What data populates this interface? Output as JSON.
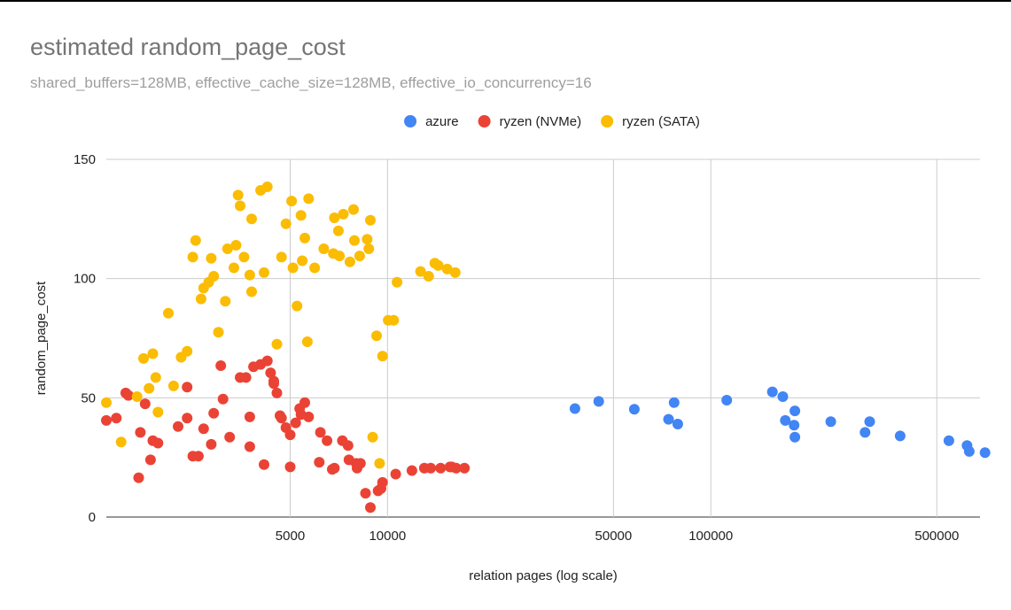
{
  "chart_data": {
    "type": "scatter",
    "title": "estimated random_page_cost",
    "subtitle": "shared_buffers=128MB, effective_cache_size=128MB, effective_io_concurrency=16",
    "xlabel": "relation pages (log scale)",
    "ylabel": "random_page_cost",
    "x_scale": "log",
    "xlim": [
      1350,
      680000
    ],
    "ylim": [
      0,
      150
    ],
    "x_ticks": [
      5000,
      10000,
      50000,
      100000,
      500000
    ],
    "y_ticks": [
      0,
      50,
      100,
      150
    ],
    "grid": true,
    "legend_position": "top",
    "series": [
      {
        "name": "azure",
        "color": "#4285F4",
        "points": [
          [
            38000,
            45.5
          ],
          [
            45000,
            48.5
          ],
          [
            58000,
            45.2
          ],
          [
            74000,
            41
          ],
          [
            77000,
            48
          ],
          [
            79000,
            39
          ],
          [
            112000,
            49
          ],
          [
            155000,
            52.5
          ],
          [
            167000,
            50.5
          ],
          [
            170000,
            40.5
          ],
          [
            181000,
            38.5
          ],
          [
            182000,
            44.5
          ],
          [
            182000,
            33.5
          ],
          [
            235000,
            40
          ],
          [
            300000,
            35.5
          ],
          [
            310000,
            40
          ],
          [
            385000,
            34
          ],
          [
            545000,
            32
          ],
          [
            620000,
            30
          ],
          [
            630000,
            27.5
          ],
          [
            705000,
            27
          ]
        ]
      },
      {
        "name": "ryzen (NVMe)",
        "color": "#EA4335",
        "points": [
          [
            1350,
            40.5
          ],
          [
            1450,
            41.5
          ],
          [
            1550,
            52
          ],
          [
            1580,
            51
          ],
          [
            1700,
            16.5
          ],
          [
            1720,
            35.5
          ],
          [
            1780,
            47.5
          ],
          [
            1850,
            24
          ],
          [
            1880,
            32
          ],
          [
            1950,
            31
          ],
          [
            2250,
            38
          ],
          [
            2400,
            54.5
          ],
          [
            2400,
            41.5
          ],
          [
            2500,
            25.5
          ],
          [
            2600,
            25.5
          ],
          [
            2700,
            37
          ],
          [
            2850,
            30.5
          ],
          [
            2900,
            43.5
          ],
          [
            3050,
            63.5
          ],
          [
            3100,
            49.5
          ],
          [
            3250,
            33.5
          ],
          [
            3500,
            58.5
          ],
          [
            3650,
            58.5
          ],
          [
            3750,
            29.5
          ],
          [
            3750,
            42
          ],
          [
            3850,
            63
          ],
          [
            4050,
            64
          ],
          [
            4150,
            22
          ],
          [
            4250,
            65.5
          ],
          [
            4350,
            60.5
          ],
          [
            4450,
            56
          ],
          [
            4450,
            57
          ],
          [
            4550,
            52
          ],
          [
            4650,
            42.5
          ],
          [
            4700,
            41.5
          ],
          [
            4850,
            37.5
          ],
          [
            5000,
            21
          ],
          [
            5000,
            34.5
          ],
          [
            5200,
            39.5
          ],
          [
            5350,
            45.5
          ],
          [
            5400,
            43
          ],
          [
            5550,
            48
          ],
          [
            5700,
            42
          ],
          [
            6150,
            23
          ],
          [
            6200,
            35.5
          ],
          [
            6500,
            32
          ],
          [
            6750,
            20
          ],
          [
            6850,
            20.5
          ],
          [
            7250,
            32
          ],
          [
            7550,
            30
          ],
          [
            7600,
            24
          ],
          [
            8000,
            22.5
          ],
          [
            8050,
            20.5
          ],
          [
            8250,
            22.5
          ],
          [
            8550,
            10
          ],
          [
            8850,
            4
          ],
          [
            9350,
            11
          ],
          [
            9550,
            12
          ],
          [
            9650,
            14.5
          ],
          [
            10600,
            18
          ],
          [
            11900,
            19.5
          ],
          [
            13000,
            20.5
          ],
          [
            13600,
            20.5
          ],
          [
            14600,
            20.5
          ],
          [
            15600,
            21
          ],
          [
            15800,
            21
          ],
          [
            16300,
            20.5
          ],
          [
            17300,
            20.5
          ]
        ]
      },
      {
        "name": "ryzen (SATA)",
        "color": "#FBBC04",
        "points": [
          [
            1350,
            48
          ],
          [
            1500,
            31.5
          ],
          [
            1680,
            50.5
          ],
          [
            1760,
            66.5
          ],
          [
            1830,
            54
          ],
          [
            1880,
            68.5
          ],
          [
            1920,
            58.5
          ],
          [
            1950,
            44
          ],
          [
            2100,
            85.5
          ],
          [
            2180,
            55
          ],
          [
            2300,
            67
          ],
          [
            2400,
            69.5
          ],
          [
            2500,
            109
          ],
          [
            2550,
            116
          ],
          [
            2650,
            91.5
          ],
          [
            2700,
            96
          ],
          [
            2800,
            98.5
          ],
          [
            2850,
            108.5
          ],
          [
            2900,
            101
          ],
          [
            3000,
            77.5
          ],
          [
            3150,
            90.5
          ],
          [
            3200,
            112.5
          ],
          [
            3350,
            104.5
          ],
          [
            3400,
            114
          ],
          [
            3450,
            135
          ],
          [
            3500,
            130.5
          ],
          [
            3600,
            109
          ],
          [
            3750,
            101.5
          ],
          [
            3800,
            94.5
          ],
          [
            3800,
            125
          ],
          [
            4050,
            137
          ],
          [
            4150,
            102.5
          ],
          [
            4250,
            138.5
          ],
          [
            4550,
            72.5
          ],
          [
            4700,
            109
          ],
          [
            4850,
            123
          ],
          [
            5050,
            132.5
          ],
          [
            5100,
            104.5
          ],
          [
            5250,
            88.5
          ],
          [
            5400,
            126.5
          ],
          [
            5450,
            107.5
          ],
          [
            5550,
            117
          ],
          [
            5650,
            73.5
          ],
          [
            5700,
            133.5
          ],
          [
            5950,
            104.5
          ],
          [
            6350,
            112.5
          ],
          [
            6800,
            110.5
          ],
          [
            6850,
            125.5
          ],
          [
            7050,
            120
          ],
          [
            7100,
            109.5
          ],
          [
            7300,
            127
          ],
          [
            7650,
            107
          ],
          [
            7850,
            129
          ],
          [
            7900,
            116
          ],
          [
            8200,
            109.5
          ],
          [
            8650,
            116.5
          ],
          [
            8750,
            112.5
          ],
          [
            8850,
            124.5
          ],
          [
            9000,
            33.5
          ],
          [
            9250,
            76
          ],
          [
            9450,
            22.5
          ],
          [
            9650,
            67.5
          ],
          [
            10050,
            82.5
          ],
          [
            10450,
            82.5
          ],
          [
            10700,
            98.5
          ],
          [
            12650,
            103
          ],
          [
            13400,
            101
          ],
          [
            14000,
            106.5
          ],
          [
            14350,
            105.5
          ],
          [
            15300,
            104
          ],
          [
            16200,
            102.5
          ]
        ]
      }
    ]
  }
}
